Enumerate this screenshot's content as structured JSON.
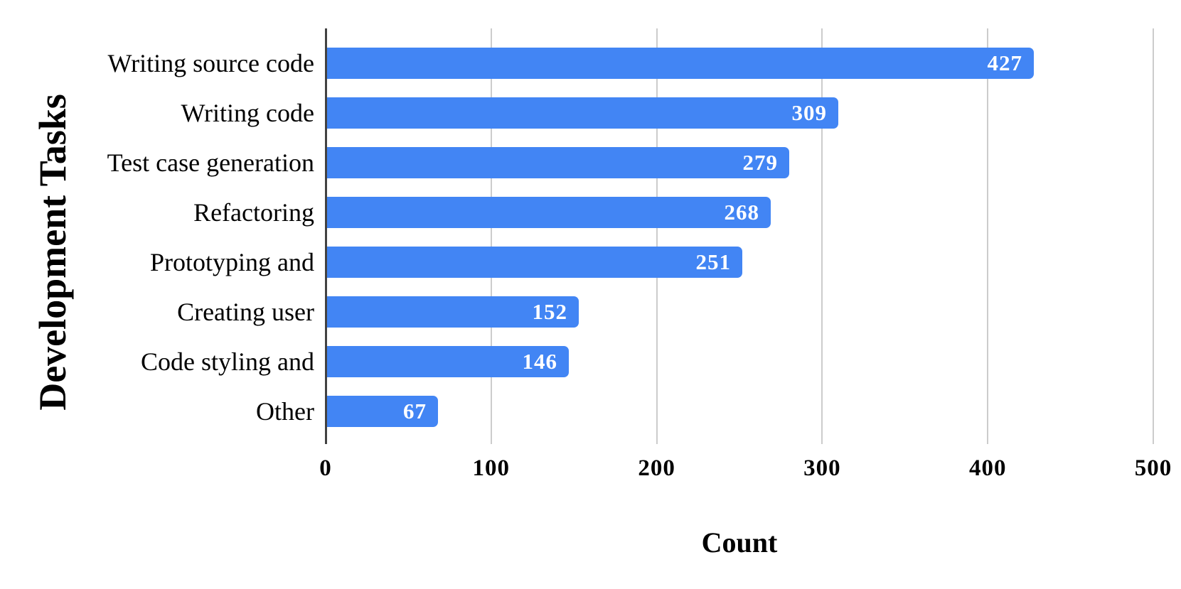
{
  "chart_data": {
    "type": "bar",
    "orientation": "horizontal",
    "categories": [
      "Writing source code",
      "Writing code",
      "Test case generation",
      "Refactoring",
      "Prototyping and",
      "Creating user",
      "Code styling and",
      "Other"
    ],
    "values": [
      427,
      309,
      279,
      268,
      251,
      152,
      146,
      67
    ],
    "value_labels": [
      "427",
      "309",
      "279",
      "268",
      "251",
      "152",
      "146",
      "67"
    ],
    "xlabel": "Count",
    "ylabel": "Development Tasks",
    "xlim": [
      0,
      500
    ],
    "xticks": [
      0,
      100,
      200,
      300,
      400,
      500
    ],
    "xtick_labels": [
      "0",
      "100",
      "200",
      "300",
      "400",
      "500"
    ],
    "grid": true,
    "legend": "none",
    "title": ""
  },
  "colors": {
    "bar": "#4285f4",
    "bar_value_text": "#ffffff",
    "axis_line": "#424242",
    "gridline": "#cccccc",
    "text": "#000000",
    "background": "#ffffff"
  }
}
